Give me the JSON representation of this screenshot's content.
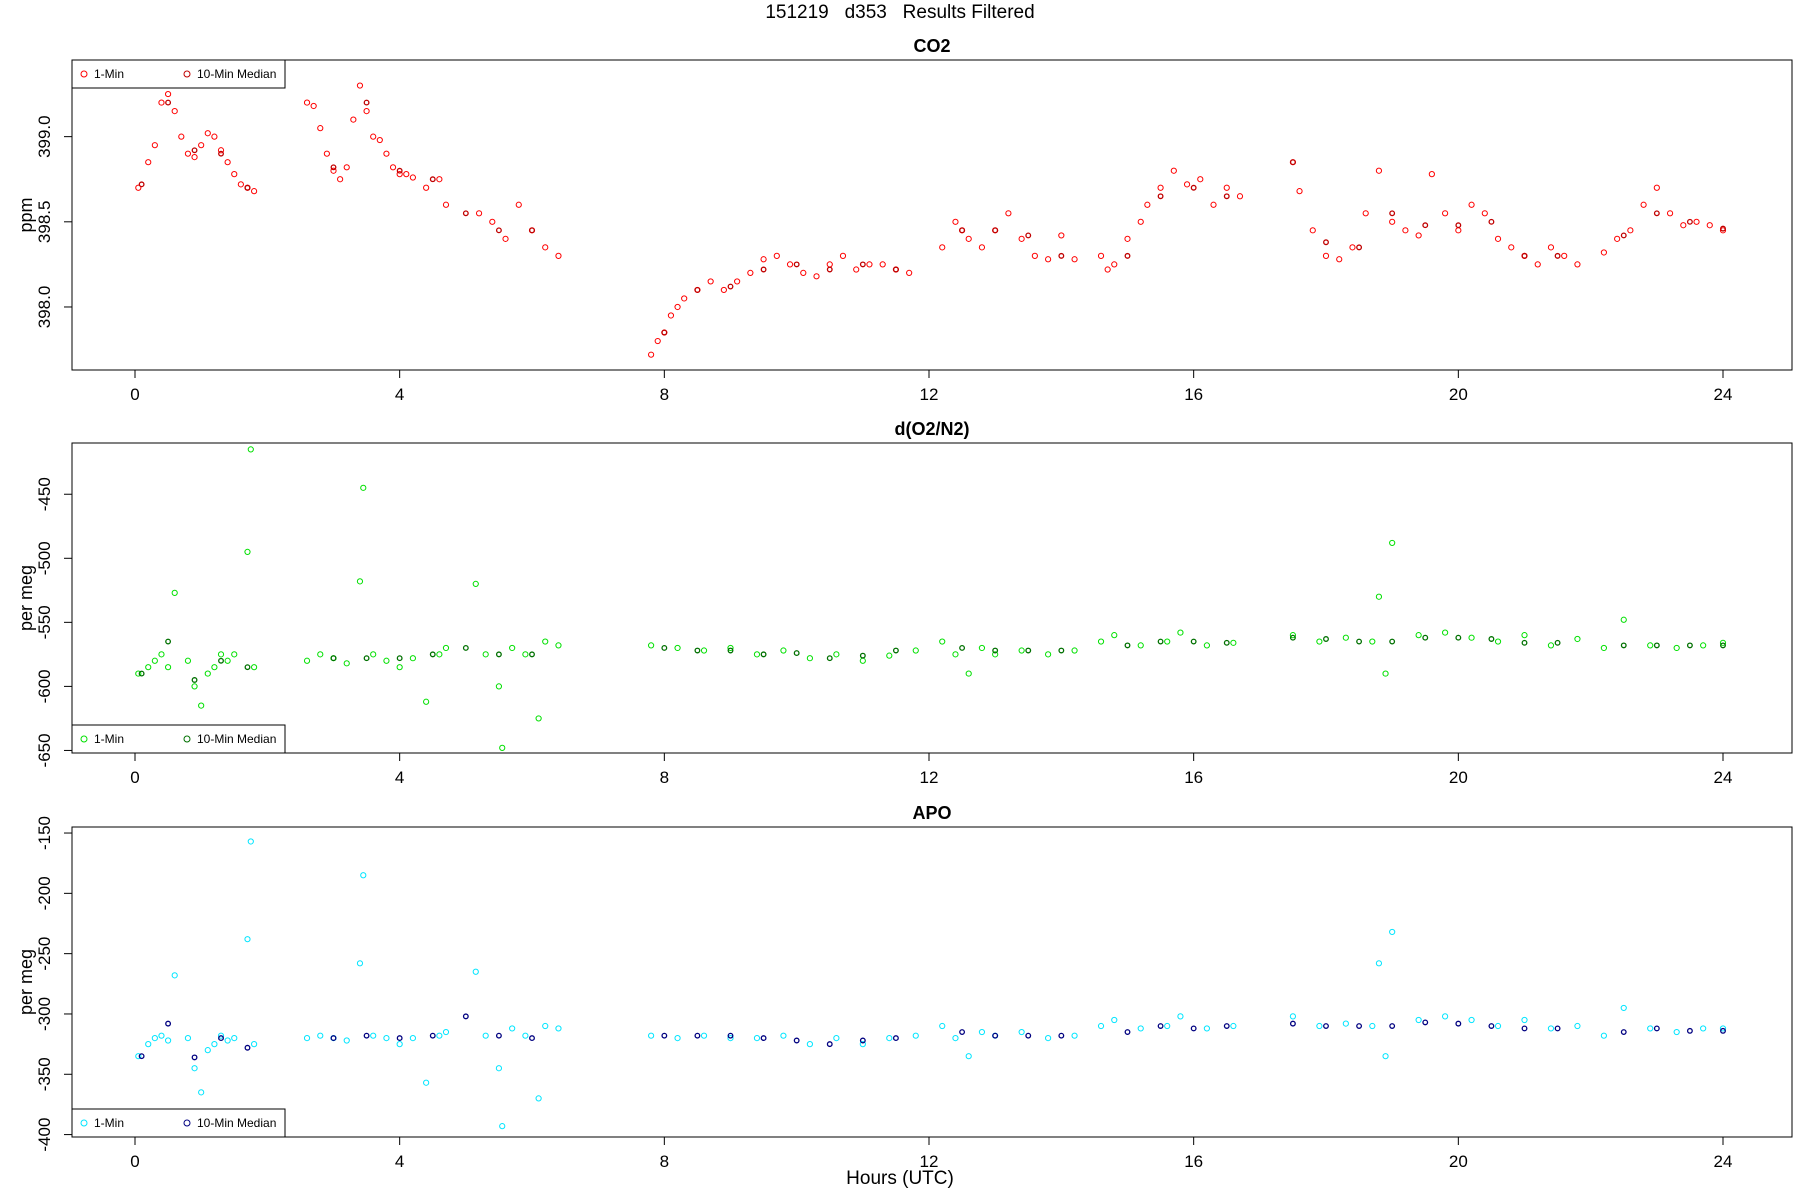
{
  "title": "151219   d353   Results Filtered",
  "xlabel": "Hours (UTC)",
  "colors": {
    "co2_1min": "#ff0000",
    "co2_median": "#c00000",
    "o2_1min": "#00e000",
    "o2_median": "#007000",
    "apo_1min": "#00e5ff",
    "apo_median": "#000080"
  },
  "chart_data": [
    {
      "type": "scatter",
      "title": "CO2",
      "ylabel": "ppm",
      "xlim": [
        0,
        24
      ],
      "ylim": [
        397.63,
        399.45
      ],
      "xticks": [
        0,
        4,
        8,
        12,
        16,
        20,
        24
      ],
      "yticks": [
        398.0,
        398.5,
        399.0
      ],
      "ytick_labels": [
        "398.0",
        "398.5",
        "399.0"
      ],
      "legend": {
        "position": "top-left",
        "entries": [
          "1-Min",
          "10-Min Median"
        ]
      },
      "series": [
        {
          "name": "1-Min",
          "color": "#ff0000",
          "x": [
            0.05,
            0.2,
            0.3,
            0.4,
            0.5,
            0.6,
            0.7,
            0.8,
            0.9,
            1.0,
            1.1,
            1.2,
            1.3,
            1.4,
            1.5,
            1.6,
            1.7,
            1.8,
            2.6,
            2.7,
            2.8,
            2.9,
            3.0,
            3.1,
            3.2,
            3.3,
            3.4,
            3.5,
            3.6,
            3.7,
            3.8,
            3.9,
            4.0,
            4.1,
            4.2,
            4.4,
            4.6,
            4.7,
            5.2,
            5.4,
            5.6,
            5.8,
            6.0,
            6.2,
            6.4,
            7.8,
            7.9,
            8.0,
            8.1,
            8.2,
            8.3,
            8.5,
            8.7,
            8.9,
            9.1,
            9.3,
            9.5,
            9.7,
            9.9,
            10.1,
            10.3,
            10.5,
            10.7,
            10.9,
            11.1,
            11.3,
            11.5,
            11.7,
            12.2,
            12.4,
            12.5,
            12.6,
            12.8,
            13.0,
            13.2,
            13.4,
            13.6,
            13.8,
            14.0,
            14.2,
            14.6,
            14.7,
            14.8,
            15.0,
            15.2,
            15.3,
            15.5,
            15.7,
            15.9,
            16.1,
            16.3,
            16.5,
            16.7,
            17.5,
            17.6,
            17.8,
            18.0,
            18.2,
            18.4,
            18.6,
            18.8,
            19.0,
            19.2,
            19.4,
            19.6,
            19.8,
            20.0,
            20.2,
            20.4,
            20.6,
            20.8,
            21.0,
            21.2,
            21.4,
            21.6,
            21.8,
            22.2,
            22.4,
            22.6,
            22.8,
            23.0,
            23.2,
            23.4,
            23.6,
            23.8,
            24.0
          ],
          "y": [
            398.7,
            398.85,
            398.95,
            399.2,
            399.25,
            399.15,
            399.0,
            398.9,
            398.88,
            398.95,
            399.02,
            399.0,
            398.92,
            398.85,
            398.78,
            398.72,
            398.7,
            398.68,
            399.2,
            399.18,
            399.05,
            398.9,
            398.8,
            398.75,
            398.82,
            399.1,
            399.3,
            399.15,
            399.0,
            398.98,
            398.9,
            398.82,
            398.78,
            398.78,
            398.76,
            398.7,
            398.75,
            398.6,
            398.55,
            398.5,
            398.4,
            398.6,
            398.45,
            398.35,
            398.3,
            397.72,
            397.8,
            397.85,
            397.95,
            398.0,
            398.05,
            398.1,
            398.15,
            398.1,
            398.15,
            398.2,
            398.28,
            398.3,
            398.25,
            398.2,
            398.18,
            398.25,
            398.3,
            398.22,
            398.25,
            398.25,
            398.22,
            398.2,
            398.35,
            398.5,
            398.45,
            398.4,
            398.35,
            398.45,
            398.55,
            398.4,
            398.3,
            398.28,
            398.42,
            398.28,
            398.3,
            398.22,
            398.25,
            398.4,
            398.5,
            398.6,
            398.7,
            398.8,
            398.72,
            398.75,
            398.6,
            398.7,
            398.65,
            398.85,
            398.68,
            398.45,
            398.3,
            398.28,
            398.35,
            398.55,
            398.8,
            398.5,
            398.45,
            398.42,
            398.78,
            398.55,
            398.45,
            398.6,
            398.55,
            398.4,
            398.35,
            398.3,
            398.25,
            398.35,
            398.3,
            398.25,
            398.32,
            398.4,
            398.45,
            398.6,
            398.7,
            398.55,
            398.48,
            398.5,
            398.48,
            398.45
          ]
        },
        {
          "name": "10-Min Median",
          "color": "#c00000",
          "x": [
            0.1,
            0.5,
            0.9,
            1.3,
            1.7,
            3.0,
            3.5,
            4.0,
            4.5,
            5.0,
            5.5,
            6.0,
            8.0,
            8.5,
            9.0,
            9.5,
            10.0,
            10.5,
            11.0,
            11.5,
            12.5,
            13.0,
            13.5,
            14.0,
            15.0,
            15.5,
            16.0,
            16.5,
            17.5,
            18.0,
            18.5,
            19.0,
            19.5,
            20.0,
            20.5,
            21.0,
            21.5,
            22.5,
            23.0,
            23.5,
            24.0
          ],
          "y": [
            398.72,
            399.2,
            398.92,
            398.9,
            398.7,
            398.82,
            399.2,
            398.8,
            398.75,
            398.55,
            398.45,
            398.45,
            397.85,
            398.1,
            398.12,
            398.22,
            398.25,
            398.22,
            398.25,
            398.22,
            398.45,
            398.45,
            398.42,
            398.3,
            398.3,
            398.65,
            398.7,
            398.65,
            398.85,
            398.38,
            398.35,
            398.55,
            398.48,
            398.48,
            398.5,
            398.3,
            398.3,
            398.42,
            398.55,
            398.5,
            398.46
          ]
        }
      ]
    },
    {
      "type": "scatter",
      "title": "d(O2/N2)",
      "ylabel": "per meg",
      "xlim": [
        0,
        24
      ],
      "ylim": [
        -652,
        -410
      ],
      "xticks": [
        0,
        4,
        8,
        12,
        16,
        20,
        24
      ],
      "yticks": [
        -650,
        -600,
        -550,
        -500,
        -450
      ],
      "ytick_labels": [
        "-650",
        "-600",
        "-550",
        "-500",
        "-450"
      ],
      "legend": {
        "position": "bottom-left",
        "entries": [
          "1-Min",
          "10-Min Median"
        ]
      },
      "series": [
        {
          "name": "1-Min",
          "color": "#00e000",
          "x": [
            0.05,
            0.2,
            0.3,
            0.4,
            0.5,
            0.6,
            0.8,
            0.9,
            1.0,
            1.1,
            1.2,
            1.3,
            1.4,
            1.5,
            1.7,
            1.75,
            1.8,
            2.6,
            2.8,
            3.0,
            3.2,
            3.4,
            3.45,
            3.6,
            3.8,
            4.0,
            4.2,
            4.4,
            4.6,
            4.7,
            5.15,
            5.3,
            5.5,
            5.55,
            5.7,
            5.9,
            6.1,
            6.2,
            6.4,
            7.8,
            8.2,
            8.6,
            9.0,
            9.4,
            9.8,
            10.2,
            10.6,
            11.0,
            11.4,
            11.8,
            12.2,
            12.4,
            12.6,
            12.8,
            13.0,
            13.4,
            13.8,
            14.2,
            14.6,
            14.8,
            15.2,
            15.6,
            15.8,
            16.2,
            16.6,
            17.5,
            17.9,
            18.3,
            18.7,
            18.8,
            18.9,
            19.0,
            19.4,
            19.8,
            20.2,
            20.6,
            21.0,
            21.4,
            21.8,
            22.2,
            22.5,
            22.9,
            23.3,
            23.7,
            24.0
          ],
          "y": [
            -590,
            -585,
            -580,
            -575,
            -585,
            -527,
            -580,
            -600,
            -615,
            -590,
            -585,
            -575,
            -580,
            -575,
            -495,
            -415,
            -585,
            -580,
            -575,
            -578,
            -582,
            -518,
            -445,
            -575,
            -580,
            -585,
            -578,
            -612,
            -575,
            -570,
            -520,
            -575,
            -600,
            -648,
            -570,
            -575,
            -625,
            -565,
            -568,
            -568,
            -570,
            -572,
            -570,
            -575,
            -572,
            -578,
            -575,
            -580,
            -576,
            -572,
            -565,
            -575,
            -590,
            -570,
            -575,
            -572,
            -575,
            -572,
            -565,
            -560,
            -568,
            -565,
            -558,
            -568,
            -566,
            -560,
            -565,
            -562,
            -565,
            -530,
            -590,
            -488,
            -560,
            -558,
            -562,
            -565,
            -560,
            -568,
            -563,
            -570,
            -548,
            -568,
            -570,
            -568,
            -566
          ]
        },
        {
          "name": "10-Min Median",
          "color": "#007000",
          "x": [
            0.1,
            0.5,
            0.9,
            1.3,
            1.7,
            3.0,
            3.5,
            4.0,
            4.5,
            5.0,
            5.5,
            6.0,
            8.0,
            8.5,
            9.0,
            9.5,
            10.0,
            10.5,
            11.0,
            11.5,
            12.5,
            13.0,
            13.5,
            14.0,
            15.0,
            15.5,
            16.0,
            16.5,
            17.5,
            18.0,
            18.5,
            19.0,
            19.5,
            20.0,
            20.5,
            21.0,
            21.5,
            22.5,
            23.0,
            23.5,
            24.0
          ],
          "y": [
            -590,
            -565,
            -595,
            -580,
            -585,
            -578,
            -578,
            -578,
            -575,
            -570,
            -575,
            -575,
            -570,
            -572,
            -572,
            -575,
            -574,
            -578,
            -576,
            -572,
            -570,
            -572,
            -572,
            -572,
            -568,
            -565,
            -565,
            -566,
            -562,
            -563,
            -565,
            -565,
            -562,
            -562,
            -563,
            -566,
            -566,
            -568,
            -568,
            -568,
            -568
          ]
        }
      ]
    },
    {
      "type": "scatter",
      "title": "APO",
      "ylabel": "per meg",
      "xlim": [
        0,
        24
      ],
      "ylim": [
        -402,
        -145
      ],
      "xticks": [
        0,
        4,
        8,
        12,
        16,
        20,
        24
      ],
      "yticks": [
        -400,
        -350,
        -300,
        -250,
        -200,
        -150
      ],
      "ytick_labels": [
        "-400",
        "-350",
        "-300",
        "-250",
        "-200",
        "-150"
      ],
      "legend": {
        "position": "bottom-left",
        "entries": [
          "1-Min",
          "10-Min Median"
        ]
      },
      "series": [
        {
          "name": "1-Min",
          "color": "#00e5ff",
          "x": [
            0.05,
            0.2,
            0.3,
            0.4,
            0.5,
            0.6,
            0.8,
            0.9,
            1.0,
            1.1,
            1.2,
            1.3,
            1.4,
            1.5,
            1.7,
            1.75,
            1.8,
            2.6,
            2.8,
            3.0,
            3.2,
            3.4,
            3.45,
            3.6,
            3.8,
            4.0,
            4.2,
            4.4,
            4.6,
            4.7,
            5.15,
            5.3,
            5.5,
            5.55,
            5.7,
            5.9,
            6.1,
            6.2,
            6.4,
            7.8,
            8.2,
            8.6,
            9.0,
            9.4,
            9.8,
            10.2,
            10.6,
            11.0,
            11.4,
            11.8,
            12.2,
            12.4,
            12.6,
            12.8,
            13.0,
            13.4,
            13.8,
            14.2,
            14.6,
            14.8,
            15.2,
            15.6,
            15.8,
            16.2,
            16.6,
            17.5,
            17.9,
            18.3,
            18.7,
            18.8,
            18.9,
            19.0,
            19.4,
            19.8,
            20.2,
            20.6,
            21.0,
            21.4,
            21.8,
            22.2,
            22.5,
            22.9,
            23.3,
            23.7,
            24.0
          ],
          "y": [
            -335,
            -325,
            -320,
            -318,
            -322,
            -268,
            -320,
            -345,
            -365,
            -330,
            -325,
            -318,
            -322,
            -320,
            -238,
            -157,
            -325,
            -320,
            -318,
            -320,
            -322,
            -258,
            -185,
            -318,
            -320,
            -325,
            -320,
            -357,
            -318,
            -315,
            -265,
            -318,
            -345,
            -393,
            -312,
            -318,
            -370,
            -310,
            -312,
            -318,
            -320,
            -318,
            -320,
            -320,
            -318,
            -325,
            -320,
            -325,
            -320,
            -318,
            -310,
            -320,
            -335,
            -315,
            -318,
            -315,
            -320,
            -318,
            -310,
            -305,
            -312,
            -310,
            -302,
            -312,
            -310,
            -302,
            -310,
            -308,
            -310,
            -258,
            -335,
            -232,
            -305,
            -302,
            -305,
            -310,
            -305,
            -312,
            -310,
            -318,
            -295,
            -312,
            -315,
            -312,
            -312
          ]
        },
        {
          "name": "10-Min Median",
          "color": "#000080",
          "x": [
            0.1,
            0.5,
            0.9,
            1.3,
            1.7,
            3.0,
            3.5,
            4.0,
            4.5,
            5.0,
            5.5,
            6.0,
            8.0,
            8.5,
            9.0,
            9.5,
            10.0,
            10.5,
            11.0,
            11.5,
            12.5,
            13.0,
            13.5,
            14.0,
            15.0,
            15.5,
            16.0,
            16.5,
            17.5,
            18.0,
            18.5,
            19.0,
            19.5,
            20.0,
            20.5,
            21.0,
            21.5,
            22.5,
            23.0,
            23.5,
            24.0
          ],
          "y": [
            -335,
            -308,
            -336,
            -320,
            -328,
            -320,
            -318,
            -320,
            -318,
            -302,
            -318,
            -320,
            -318,
            -318,
            -318,
            -320,
            -322,
            -325,
            -322,
            -320,
            -315,
            -318,
            -318,
            -318,
            -315,
            -310,
            -312,
            -310,
            -308,
            -310,
            -310,
            -310,
            -307,
            -308,
            -310,
            -312,
            -312,
            -315,
            -312,
            -314,
            -314
          ]
        }
      ]
    }
  ]
}
